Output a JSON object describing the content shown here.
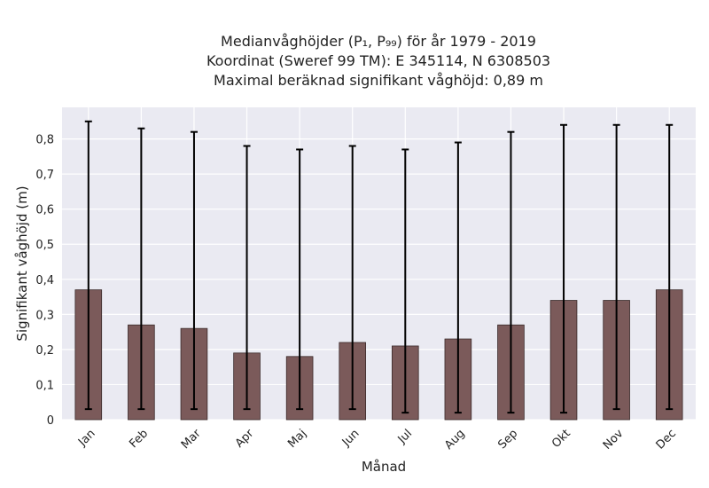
{
  "chart_data": {
    "type": "bar",
    "title_lines": [
      "Medianvåghöjder (P₁, P₉₉) för år 1979 - 2019",
      "Koordinat (Sweref 99 TM): E 345114, N 6308503",
      "Maximal beräknad signifikant våghöjd: 0,89 m"
    ],
    "xlabel": "Månad",
    "ylabel": "Signifikant våghöjd (m)",
    "categories": [
      "Jan",
      "Feb",
      "Mar",
      "Apr",
      "Maj",
      "Jun",
      "Jul",
      "Aug",
      "Sep",
      "Okt",
      "Nov",
      "Dec"
    ],
    "values": [
      0.37,
      0.27,
      0.26,
      0.19,
      0.18,
      0.22,
      0.21,
      0.23,
      0.27,
      0.34,
      0.34,
      0.37
    ],
    "p1": [
      0.03,
      0.03,
      0.03,
      0.03,
      0.03,
      0.03,
      0.02,
      0.02,
      0.02,
      0.02,
      0.03,
      0.03
    ],
    "p99": [
      0.85,
      0.83,
      0.82,
      0.78,
      0.77,
      0.78,
      0.77,
      0.79,
      0.82,
      0.84,
      0.84,
      0.84
    ],
    "ylim": [
      0,
      0.89
    ],
    "yticks": [
      0,
      0.1,
      0.2,
      0.3,
      0.4,
      0.5,
      0.6,
      0.7,
      0.8
    ],
    "ytick_labels": [
      "0",
      "0,1",
      "0,2",
      "0,3",
      "0,4",
      "0,5",
      "0,6",
      "0,7",
      "0,8"
    ],
    "grid": true,
    "colors": {
      "bar": "#7b5a5a",
      "bar_edge": "#3a2a2a",
      "error": "#000000",
      "plot_bg": "#eaeaf2",
      "grid": "#ffffff"
    }
  }
}
